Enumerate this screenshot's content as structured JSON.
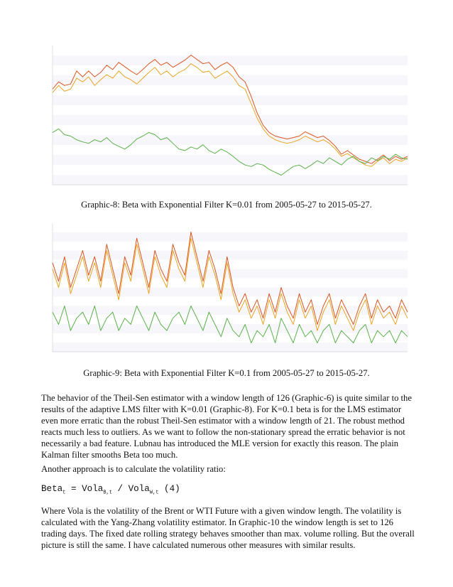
{
  "charts": [
    {
      "type": "line",
      "series": [
        {
          "color": "#e8a423",
          "values": [
            1.5,
            1.6,
            1.52,
            1.55,
            1.7,
            1.65,
            1.72,
            1.6,
            1.68,
            1.75,
            1.7,
            1.8,
            1.72,
            1.68,
            1.62,
            1.7,
            1.78,
            1.85,
            1.75,
            1.8,
            1.72,
            1.78,
            1.82,
            1.9,
            1.85,
            1.78,
            1.8,
            1.7,
            1.75,
            1.8,
            1.72,
            1.6,
            1.55,
            1.35,
            1.15,
            1.0,
            0.9,
            0.85,
            0.82,
            0.8,
            0.82,
            0.85,
            0.9,
            0.86,
            0.82,
            0.85,
            0.8,
            0.72,
            0.62,
            0.66,
            0.6,
            0.55,
            0.5,
            0.48,
            0.55,
            0.6,
            0.52,
            0.58,
            0.55,
            0.6
          ]
        },
        {
          "color": "#d9541f",
          "values": [
            1.55,
            1.65,
            1.6,
            1.62,
            1.8,
            1.72,
            1.8,
            1.72,
            1.78,
            1.88,
            1.82,
            1.92,
            1.86,
            1.8,
            1.75,
            1.82,
            1.9,
            1.96,
            1.88,
            1.92,
            1.85,
            1.9,
            1.95,
            2.02,
            1.96,
            1.9,
            1.92,
            1.82,
            1.88,
            1.92,
            1.85,
            1.72,
            1.65,
            1.45,
            1.22,
            1.05,
            0.95,
            0.9,
            0.88,
            0.86,
            0.88,
            0.9,
            0.96,
            0.92,
            0.88,
            0.9,
            0.84,
            0.76,
            0.65,
            0.7,
            0.64,
            0.58,
            0.55,
            0.52,
            0.58,
            0.64,
            0.56,
            0.62,
            0.58,
            0.62
          ]
        },
        {
          "color": "#59b048",
          "values": [
            0.95,
            1.0,
            0.92,
            0.9,
            0.85,
            0.82,
            0.8,
            0.85,
            0.82,
            0.88,
            0.8,
            0.76,
            0.72,
            0.78,
            0.86,
            0.9,
            0.95,
            0.92,
            0.85,
            0.88,
            0.8,
            0.72,
            0.7,
            0.75,
            0.72,
            0.78,
            0.7,
            0.66,
            0.72,
            0.68,
            0.62,
            0.55,
            0.5,
            0.48,
            0.52,
            0.5,
            0.44,
            0.4,
            0.36,
            0.42,
            0.48,
            0.5,
            0.45,
            0.5,
            0.56,
            0.52,
            0.6,
            0.55,
            0.5,
            0.58,
            0.62,
            0.55,
            0.52,
            0.6,
            0.56,
            0.62,
            0.58,
            0.65,
            0.6,
            0.58
          ]
        }
      ]
    },
    {
      "type": "line",
      "series": [
        {
          "color": "#e8a423",
          "values": [
            1.8,
            1.5,
            1.9,
            1.4,
            1.7,
            2.0,
            1.6,
            1.9,
            1.5,
            2.1,
            1.7,
            1.3,
            1.9,
            1.6,
            2.2,
            1.8,
            1.4,
            2.0,
            1.7,
            1.5,
            2.1,
            1.8,
            1.6,
            2.3,
            1.9,
            1.5,
            2.0,
            1.7,
            1.3,
            1.9,
            1.4,
            1.1,
            1.3,
            1.0,
            1.2,
            0.9,
            1.3,
            1.0,
            1.4,
            1.1,
            0.9,
            1.3,
            1.0,
            1.2,
            0.8,
            1.1,
            1.3,
            0.9,
            1.2,
            1.0,
            0.8,
            1.1,
            1.3,
            0.9,
            1.2,
            1.0,
            1.1,
            0.9,
            1.2,
            1.0
          ]
        },
        {
          "color": "#d9541f",
          "values": [
            1.9,
            1.6,
            2.0,
            1.5,
            1.8,
            2.1,
            1.7,
            2.0,
            1.6,
            2.2,
            1.8,
            1.4,
            2.0,
            1.7,
            2.3,
            1.9,
            1.5,
            2.1,
            1.8,
            1.6,
            2.2,
            1.9,
            1.7,
            2.4,
            2.0,
            1.6,
            2.1,
            1.8,
            1.4,
            2.0,
            1.5,
            1.2,
            1.4,
            1.1,
            1.3,
            1.0,
            1.4,
            1.1,
            1.5,
            1.2,
            1.0,
            1.4,
            1.1,
            1.3,
            0.9,
            1.2,
            1.4,
            1.0,
            1.3,
            1.1,
            0.9,
            1.2,
            1.4,
            1.0,
            1.3,
            1.1,
            1.2,
            1.0,
            1.3,
            1.1
          ]
        },
        {
          "color": "#59b048",
          "values": [
            1.1,
            0.9,
            1.2,
            0.8,
            1.0,
            1.1,
            0.9,
            1.2,
            0.8,
            1.0,
            1.1,
            0.8,
            1.0,
            0.9,
            1.2,
            1.0,
            0.8,
            1.1,
            0.9,
            0.8,
            1.0,
            1.1,
            0.9,
            1.2,
            1.0,
            0.8,
            1.1,
            0.9,
            0.7,
            1.0,
            0.8,
            0.7,
            0.9,
            0.6,
            0.8,
            0.7,
            0.9,
            0.6,
            1.0,
            0.8,
            0.6,
            0.9,
            0.7,
            0.8,
            0.6,
            0.8,
            0.9,
            0.6,
            0.8,
            0.7,
            0.6,
            0.8,
            0.9,
            0.6,
            0.8,
            0.7,
            0.8,
            0.6,
            0.8,
            0.7
          ]
        }
      ]
    }
  ],
  "caption1": "Graphic-8: Beta with Exponential Filter K=0.01 from 2005-05-27 to 2015-05-27.",
  "caption2": "Graphic-9: Beta with Exponential Filter K=0.1 from 2005-05-27 to 2015-05-27.",
  "paragraph1": "The behavior of the Theil-Sen estimator with a window length of 126 (Graphic-6) is quite similar to the results of the adaptive LMS filter with K=0.01 (Graphic-8). For K=0.1 beta is for the LMS estimator even more erratic than the robust Theil-Sen estimator with a window length of 21. The robust method reacts much less to outliers. As we want to follow the non-stationary spread the erratic behavior is not necessarily a bad feature. Lubnau has introduced the MLE version for exactly this reason. The plain Kalman filter smooths Beta too much.",
  "paragraph2": "Another approach is to calculate the volatility ratio:",
  "formula": {
    "beta": "Beta",
    "beta_sub": "t",
    "mid": " = Vola",
    "vola_b_sub": "B,t",
    "div": " / Vola",
    "vola_w_sub": "W,t",
    "tail": " (4)"
  },
  "paragraph3": "Where Vola is the volatility of the Brent or WTI Future with a given window length. The volatility is calculated with the Yang-Zhang volatility estimator. In Graphic-10 the window length is set to 126 trading days. The fixed date rolling strategy behaves smoother than max. volume rolling. But the overall picture is still the same. I have calculated numerous other measures with similar results."
}
